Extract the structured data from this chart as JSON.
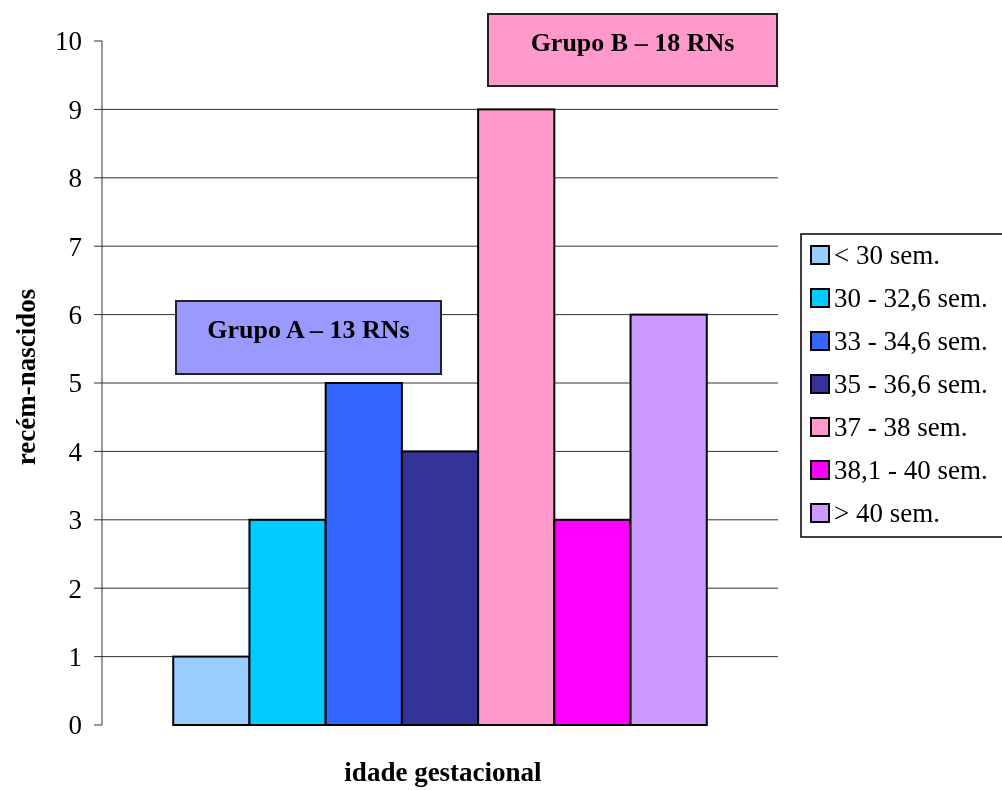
{
  "chart_data": {
    "type": "bar",
    "xlabel": "idade gestacional",
    "ylabel": "recém-nascidos",
    "categories": [
      null
    ],
    "series": [
      {
        "name": "< 30 sem.",
        "color": "#99ccff",
        "values": [
          1
        ]
      },
      {
        "name": "30 - 32,6 sem.",
        "color": "#00ccff",
        "values": [
          3
        ]
      },
      {
        "name": "33 - 34,6 sem.",
        "color": "#3366ff",
        "values": [
          5
        ]
      },
      {
        "name": "35 - 36,6 sem.",
        "color": "#333399",
        "values": [
          4
        ]
      },
      {
        "name": "37 - 38 sem.",
        "color": "#ff99cc",
        "values": [
          9
        ]
      },
      {
        "name": "38,1 - 40 sem.",
        "color": "#ff00ff",
        "values": [
          3
        ]
      },
      {
        "name": "> 40 sem.",
        "color": "#cc99ff",
        "values": [
          6
        ]
      }
    ],
    "ylim": [
      0,
      10
    ],
    "yticks": [
      0,
      1,
      2,
      3,
      4,
      5,
      6,
      7,
      8,
      9,
      10
    ],
    "grid": "y",
    "legend": "right",
    "annotations": [
      "Grupo A – 13 RNs",
      "Grupo B – 18 RNs"
    ]
  }
}
